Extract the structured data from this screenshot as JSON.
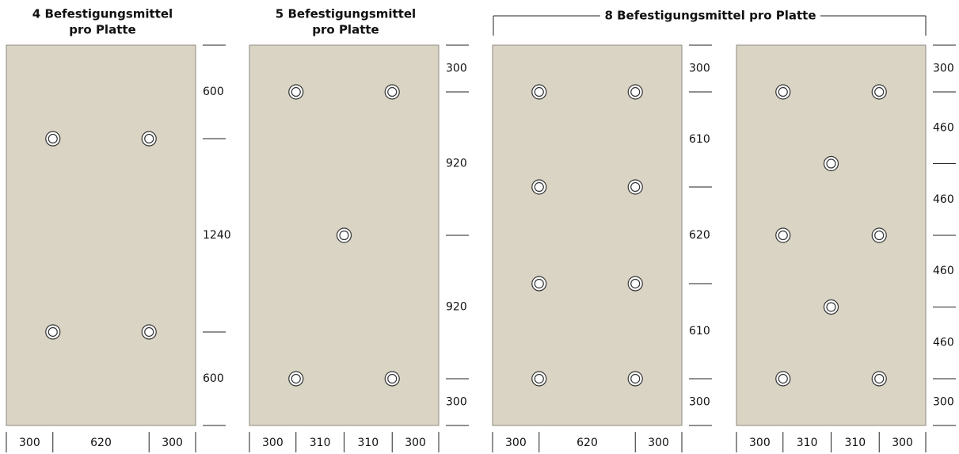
{
  "panels": [
    {
      "title": [
        "4 Befestigungsmittel",
        "pro Platte"
      ],
      "vertical_dims": [
        600,
        1240,
        600
      ],
      "horizontal_dims": [
        300,
        620,
        300
      ]
    },
    {
      "title": [
        "5 Befestigungsmittel",
        "pro Platte"
      ],
      "vertical_dims": [
        300,
        920,
        920,
        300
      ],
      "horizontal_dims": [
        300,
        310,
        310,
        300
      ]
    },
    {
      "vertical_dims": [
        300,
        610,
        620,
        610,
        300
      ],
      "horizontal_dims": [
        300,
        620,
        300
      ]
    },
    {
      "vertical_dims": [
        300,
        460,
        460,
        460,
        460,
        300
      ],
      "horizontal_dims": [
        300,
        310,
        310,
        300
      ]
    }
  ],
  "group_title": "8 Befestigungsmittel pro Platte"
}
